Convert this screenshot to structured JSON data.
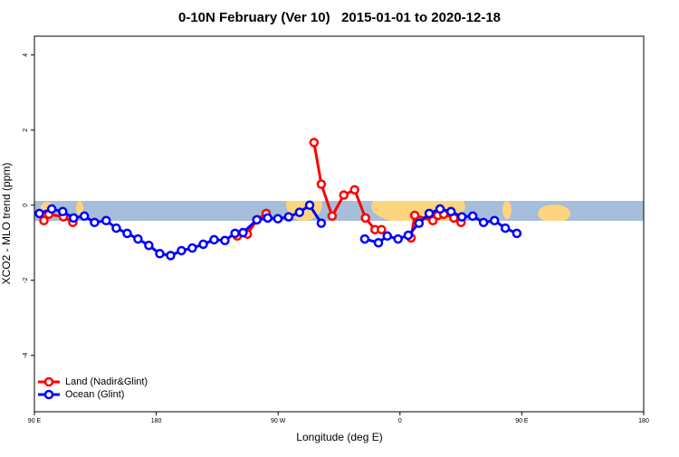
{
  "chart_data": {
    "type": "line",
    "title": "0-10N February (Ver 10)   2015-01-01 to 2020-12-18",
    "x_label": "Longitude (deg E)",
    "y_label": "XCO2 - MLO trend (ppm)",
    "xlim": [
      90,
      540
    ],
    "xticks": [
      {
        "value": 90,
        "label": "90 E"
      },
      180,
      {
        "value": 270,
        "label": "90 W"
      },
      {
        "value": 360,
        "label": "0"
      },
      {
        "value": 450,
        "label": "90 E"
      },
      {
        "value": 540,
        "label": "180"
      }
    ],
    "ylim": [
      -5.5,
      4.5
    ],
    "yticks": [
      4,
      2,
      0,
      -2,
      -4
    ],
    "legend": "bottom-left",
    "series": [
      {
        "name": "Land (Nadir&Glint)",
        "color": "#ff0000",
        "x": [
          97.0,
          100.7,
          111.4,
          118.4,
          null,
          239.8,
          247.3,
          254.3,
          261.2,
          null,
          296.5,
          301.9,
          309.9,
          318.5,
          326.5,
          334.5,
          341.5,
          346.3,
          null,
          368.2,
          370.9,
          384.3,
          388.0,
          392.3,
          399.8,
          405.1
        ],
        "values": [
          -0.41,
          -0.24,
          -0.31,
          -0.46,
          null,
          -0.82,
          -0.77,
          -0.39,
          -0.22,
          null,
          1.67,
          0.56,
          -0.29,
          0.27,
          0.41,
          -0.34,
          -0.65,
          -0.65,
          null,
          -0.87,
          -0.27,
          -0.41,
          -0.27,
          -0.24,
          -0.34,
          -0.46
        ]
      },
      {
        "name": "Ocean (Glint)",
        "color": "#0000ff",
        "x": [
          93.7,
          102.8,
          110.9,
          118.9,
          126.9,
          134.4,
          143.0,
          150.5,
          158.5,
          166.5,
          174.5,
          182.6,
          190.6,
          198.6,
          206.6,
          214.7,
          222.7,
          230.7,
          238.2,
          244.1,
          254.3,
          262.3,
          269.8,
          277.8,
          285.8,
          293.3,
          301.9,
          null,
          334.0,
          344.1,
          350.6,
          358.6,
          366.1,
          374.1,
          381.6,
          389.6,
          397.7,
          405.7,
          413.7,
          421.7,
          429.8,
          437.8,
          446.3
        ],
        "values": [
          -0.22,
          -0.1,
          -0.17,
          -0.34,
          -0.29,
          -0.46,
          -0.41,
          -0.61,
          -0.75,
          -0.9,
          -1.07,
          -1.29,
          -1.34,
          -1.21,
          -1.14,
          -1.04,
          -0.92,
          -0.94,
          -0.75,
          -0.73,
          -0.39,
          -0.34,
          -0.36,
          -0.31,
          -0.19,
          0.0,
          -0.48,
          null,
          -0.9,
          -1.0,
          -0.82,
          -0.9,
          -0.8,
          -0.48,
          -0.22,
          -0.1,
          -0.17,
          -0.31,
          -0.29,
          -0.46,
          -0.41,
          -0.61,
          -0.75
        ]
      }
    ]
  }
}
